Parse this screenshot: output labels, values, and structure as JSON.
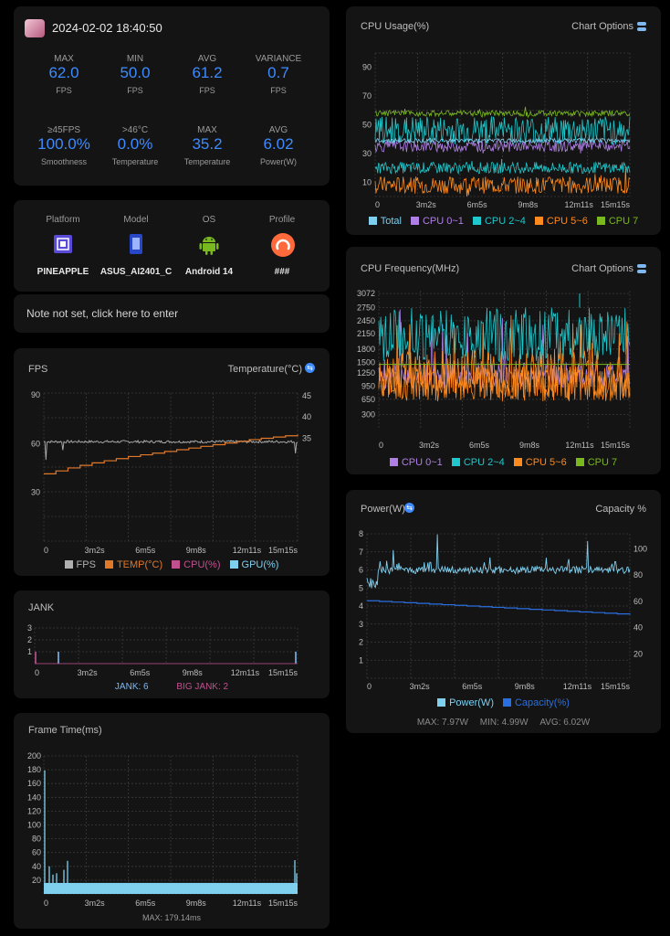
{
  "header": {
    "datetime": "2024-02-02 18:40:50"
  },
  "stats_row1": [
    {
      "label": "MAX",
      "value": "62.0",
      "unit": "FPS"
    },
    {
      "label": "MIN",
      "value": "50.0",
      "unit": "FPS"
    },
    {
      "label": "AVG",
      "value": "61.2",
      "unit": "FPS"
    },
    {
      "label": "VARIANCE",
      "value": "0.7",
      "unit": "FPS"
    }
  ],
  "stats_row2": [
    {
      "label": "≥45FPS",
      "value": "100.0%",
      "unit": "Smoothness"
    },
    {
      "label": ">46°C",
      "value": "0.0%",
      "unit": "Temperature"
    },
    {
      "label": "MAX",
      "value": "35.2",
      "unit": "Temperature"
    },
    {
      "label": "AVG",
      "value": "6.02",
      "unit": "Power(W)"
    }
  ],
  "device": [
    {
      "label": "Platform",
      "value": "PINEAPPLE",
      "icon": "chip-icon"
    },
    {
      "label": "Model",
      "value": "ASUS_AI2401_C",
      "icon": "phone-icon"
    },
    {
      "label": "OS",
      "value": "Android 14",
      "icon": "android-icon"
    },
    {
      "label": "Profile",
      "value": "###",
      "icon": "profile-icon"
    }
  ],
  "note": "Note not set, click here to enter",
  "x_ticks": [
    "0",
    "3m2s",
    "6m5s",
    "9m8s",
    "12m11s",
    "15m15s"
  ],
  "chart_data": [
    {
      "type": "line",
      "title": "FPS",
      "right_title": "Temperature(°C)",
      "y_ticks": [
        30,
        60,
        90
      ],
      "y2_ticks": [
        35,
        40,
        45
      ],
      "series": [
        {
          "name": "FPS",
          "color": "#b0b0b0",
          "values": [
            55,
            62,
            61,
            62,
            62,
            61,
            62,
            62,
            61,
            62,
            62,
            61,
            62,
            62,
            62,
            61,
            62,
            62,
            61,
            62,
            62,
            62
          ]
        },
        {
          "name": "TEMP(°C)",
          "color": "#e0782a",
          "values": [
            25.9,
            26.6,
            27.3,
            27.9,
            28.5,
            29.0,
            29.5,
            30.0,
            30.4,
            30.8,
            31.2,
            31.6,
            32.0,
            32.4,
            32.8,
            33.2,
            33.6,
            34.0,
            34.3,
            34.6,
            34.9,
            35.2
          ]
        },
        {
          "name": "CPU(%)",
          "color": "#c2508f",
          "values": []
        },
        {
          "name": "GPU(%)",
          "color": "#7fcfef",
          "values": []
        }
      ]
    },
    {
      "type": "bar",
      "title": "JANK",
      "y_ticks": [
        1,
        2,
        3
      ],
      "summary": [
        {
          "text": "JANK: 6",
          "color": "#7fb8ef"
        },
        {
          "text": "BIG JANK: 2",
          "color": "#c2508f"
        }
      ]
    },
    {
      "type": "bar",
      "title": "Frame Time(ms)",
      "y_ticks": [
        20,
        40,
        60,
        80,
        100,
        120,
        140,
        160,
        180,
        200
      ],
      "footer": "MAX: 179.14ms"
    },
    {
      "type": "line",
      "title": "CPU Usage(%)",
      "options": "Chart Options",
      "y_ticks": [
        10,
        30,
        50,
        70,
        90
      ],
      "series": [
        {
          "name": "Total",
          "color": "#7fcfef"
        },
        {
          "name": "CPU 0~1",
          "color": "#b07fe6"
        },
        {
          "name": "CPU 2~4",
          "color": "#1ec8cc"
        },
        {
          "name": "CPU 5~6",
          "color": "#ff8a1e"
        },
        {
          "name": "CPU 7",
          "color": "#7ab820"
        }
      ]
    },
    {
      "type": "line",
      "title": "CPU Frequency(MHz)",
      "options": "Chart Options",
      "y_ticks": [
        300,
        650,
        950,
        1250,
        1500,
        1800,
        2150,
        2450,
        2750,
        3072
      ],
      "series": [
        {
          "name": "CPU 0~1",
          "color": "#b07fe6"
        },
        {
          "name": "CPU 2~4",
          "color": "#1ec8cc"
        },
        {
          "name": "CPU 5~6",
          "color": "#ff8a1e"
        },
        {
          "name": "CPU 7",
          "color": "#7ab820"
        }
      ]
    },
    {
      "type": "line",
      "title": "Power(W)",
      "right_title": "Capacity %",
      "y_ticks": [
        1,
        2,
        3,
        4,
        5,
        6,
        7,
        8
      ],
      "y2_ticks": [
        20,
        40,
        60,
        80,
        100
      ],
      "series": [
        {
          "name": "Power(W)",
          "color": "#7fcfef"
        },
        {
          "name": "Capacity(%)",
          "color": "#2a6fe0",
          "values": [
            59,
            58.5,
            58,
            57.5,
            57,
            56.5,
            56,
            55.5,
            55,
            54.5,
            54,
            53.5,
            53,
            52.5,
            52,
            51.5,
            51,
            50.5,
            50,
            49.5,
            49,
            48.5
          ]
        }
      ],
      "footer": [
        "MAX: 7.97W",
        "MIN: 4.99W",
        "AVG: 6.02W"
      ]
    }
  ]
}
